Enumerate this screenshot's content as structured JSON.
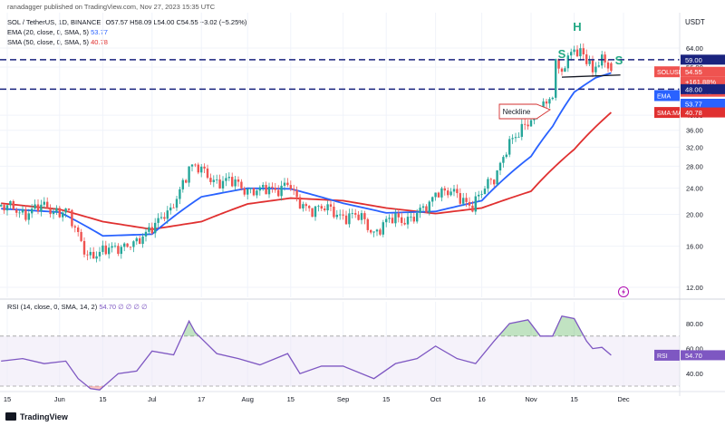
{
  "header": {
    "attribution": "ranadagger published on TradingView.com, Nov 27, 2023 15:35 UTC",
    "symbol_line": "SOL / TetherUS, 1D, BINANCE",
    "ohlc": "O57.57 H58.09 L54.00 C54.55 −3.02 (−5.25%)",
    "ema_label": "EMA (20, close, 0, SMA, 5)",
    "ema_value": "53.77",
    "sma_label": "SMA (50, close, 0, SMA, 5)",
    "sma_value": "40.78",
    "currency": "USDT"
  },
  "rsi_header": {
    "label": "RSI (14, close, 0, SMA, 14, 2)",
    "values": "54.70 ∅ ∅ ∅ ∅"
  },
  "footer": {
    "logo_text": "TradingView"
  },
  "annotations": {
    "left_shoulder": "S",
    "head": "H",
    "right_shoulder": "S",
    "neckline": "Neckline"
  },
  "price_tags": {
    "resistance": "59.00",
    "price_symbol": "SOLUSDT",
    "price": "54.55",
    "change": "+161.88%",
    "countdown": "08:24:02",
    "ema_tag": "EMA",
    "ema_value": "53.77",
    "support": "48.00",
    "sma_tag": "SMA:MA",
    "sma_value": "40.78",
    "rsi_tag": "RSI",
    "rsi_value": "54.70"
  },
  "colors": {
    "up": "#26a69a",
    "down": "#ef5350",
    "ema": "#2962ff",
    "sma": "#e03030",
    "rsi": "#7e57c2",
    "levels": "#1a237e",
    "annotation": "#22a884"
  },
  "chart_data": [
    {
      "type": "candlestick",
      "title": "SOL / TetherUS, 1D, BINANCE",
      "y_scale": "log",
      "y_ticks": [
        12,
        16,
        20,
        24,
        28,
        32,
        36,
        40,
        48,
        56,
        64
      ],
      "y_tick_labels": [
        "12.00",
        "16.00",
        "20.00",
        "24.00",
        "28.00",
        "32.00",
        "36.00",
        "40.00",
        "48.00",
        "56.00",
        "64.00"
      ],
      "x_ticks": [
        "2023-05-15",
        "2023-06-01",
        "2023-06-15",
        "2023-07-01",
        "2023-07-17",
        "2023-08-01",
        "2023-08-15",
        "2023-09-01",
        "2023-09-15",
        "2023-10-01",
        "2023-10-16",
        "2023-11-01",
        "2023-11-15",
        "2023-12-01"
      ],
      "x_tick_labels": [
        "15",
        "Jun",
        "15",
        "Jul",
        "17",
        "Aug",
        "15",
        "Sep",
        "15",
        "Oct",
        "16",
        "Nov",
        "15",
        "Dec"
      ],
      "horizontal_levels": [
        59,
        48
      ],
      "neckline": {
        "from": [
          "2023-11-11",
          52.2
        ],
        "to": [
          "2023-11-30",
          53.0
        ]
      },
      "close_anchors": [
        [
          "2023-05-13",
          21.0
        ],
        [
          "2023-05-20",
          20.4
        ],
        [
          "2023-05-27",
          20.9
        ],
        [
          "2023-06-03",
          20.5
        ],
        [
          "2023-06-06",
          17.8
        ],
        [
          "2023-06-10",
          15.3
        ],
        [
          "2023-06-14",
          15.0
        ],
        [
          "2023-06-20",
          16.2
        ],
        [
          "2023-06-26",
          16.0
        ],
        [
          "2023-07-01",
          18.8
        ],
        [
          "2023-07-07",
          20.0
        ],
        [
          "2023-07-13",
          28.0
        ],
        [
          "2023-07-15",
          27.5
        ],
        [
          "2023-07-22",
          25.4
        ],
        [
          "2023-07-29",
          24.6
        ],
        [
          "2023-08-05",
          23.3
        ],
        [
          "2023-08-12",
          24.4
        ],
        [
          "2023-08-14",
          24.9
        ],
        [
          "2023-08-17",
          21.6
        ],
        [
          "2023-08-25",
          20.7
        ],
        [
          "2023-09-01",
          20.0
        ],
        [
          "2023-09-07",
          19.3
        ],
        [
          "2023-09-11",
          17.8
        ],
        [
          "2023-09-18",
          19.4
        ],
        [
          "2023-09-25",
          19.7
        ],
        [
          "2023-09-29",
          21.3
        ],
        [
          "2023-10-01",
          24.0
        ],
        [
          "2023-10-07",
          22.8
        ],
        [
          "2023-10-13",
          21.6
        ],
        [
          "2023-10-16",
          23.0
        ],
        [
          "2023-10-20",
          25.8
        ],
        [
          "2023-10-24",
          32.0
        ],
        [
          "2023-10-28",
          34.5
        ],
        [
          "2023-10-31",
          38.8
        ],
        [
          "2023-11-02",
          40.2
        ],
        [
          "2023-11-04",
          42.5
        ],
        [
          "2023-11-06",
          42.0
        ],
        [
          "2023-11-08",
          46.0
        ],
        [
          "2023-11-09",
          57.0
        ],
        [
          "2023-11-10",
          56.0
        ],
        [
          "2023-11-12",
          57.5
        ],
        [
          "2023-11-14",
          62.5
        ],
        [
          "2023-11-15",
          65.0
        ],
        [
          "2023-11-16",
          58.0
        ],
        [
          "2023-11-17",
          61.5
        ],
        [
          "2023-11-19",
          59.0
        ],
        [
          "2023-11-21",
          55.0
        ],
        [
          "2023-11-22",
          58.5
        ],
        [
          "2023-11-24",
          59.5
        ],
        [
          "2023-11-25",
          57.6
        ],
        [
          "2023-11-27",
          54.55
        ]
      ],
      "ema20_anchors": [
        [
          "2023-05-13",
          20.8
        ],
        [
          "2023-06-01",
          20.3
        ],
        [
          "2023-06-15",
          17.2
        ],
        [
          "2023-07-01",
          17.4
        ],
        [
          "2023-07-17",
          22.6
        ],
        [
          "2023-08-01",
          24.0
        ],
        [
          "2023-08-15",
          23.9
        ],
        [
          "2023-09-01",
          21.6
        ],
        [
          "2023-09-15",
          20.2
        ],
        [
          "2023-10-01",
          20.4
        ],
        [
          "2023-10-16",
          22.0
        ],
        [
          "2023-11-01",
          30.0
        ],
        [
          "2023-11-08",
          37.0
        ],
        [
          "2023-11-15",
          47.0
        ],
        [
          "2023-11-22",
          52.0
        ],
        [
          "2023-11-27",
          53.77
        ]
      ],
      "sma50_anchors": [
        [
          "2023-05-13",
          21.6
        ],
        [
          "2023-06-01",
          20.7
        ],
        [
          "2023-06-15",
          19.0
        ],
        [
          "2023-07-01",
          18.0
        ],
        [
          "2023-07-17",
          19.0
        ],
        [
          "2023-08-01",
          21.5
        ],
        [
          "2023-08-15",
          22.4
        ],
        [
          "2023-09-01",
          22.0
        ],
        [
          "2023-09-15",
          20.9
        ],
        [
          "2023-10-01",
          20.1
        ],
        [
          "2023-10-16",
          20.9
        ],
        [
          "2023-11-01",
          23.5
        ],
        [
          "2023-11-15",
          31.5
        ],
        [
          "2023-11-27",
          40.78
        ]
      ]
    },
    {
      "type": "line",
      "title": "RSI (14, close, 0, SMA, 14, 2)",
      "y_ticks": [
        40,
        60,
        80
      ],
      "y_tick_labels": [
        "40.00",
        "60.00",
        "80.00"
      ],
      "band": [
        30,
        70
      ],
      "x": [
        "2023-05-13",
        "2023-05-20",
        "2023-05-27",
        "2023-06-03",
        "2023-06-07",
        "2023-06-11",
        "2023-06-14",
        "2023-06-20",
        "2023-06-26",
        "2023-07-01",
        "2023-07-08",
        "2023-07-13",
        "2023-07-15",
        "2023-07-22",
        "2023-07-29",
        "2023-08-05",
        "2023-08-14",
        "2023-08-18",
        "2023-08-25",
        "2023-09-01",
        "2023-09-11",
        "2023-09-18",
        "2023-09-25",
        "2023-10-01",
        "2023-10-08",
        "2023-10-14",
        "2023-10-20",
        "2023-10-25",
        "2023-10-31",
        "2023-11-04",
        "2023-11-08",
        "2023-11-11",
        "2023-11-15",
        "2023-11-19",
        "2023-11-21",
        "2023-11-24",
        "2023-11-27"
      ],
      "values": [
        50,
        52,
        48,
        50,
        36,
        28,
        27,
        40,
        42,
        58,
        55,
        82,
        73,
        56,
        52,
        47,
        56,
        40,
        46,
        46,
        36,
        48,
        52,
        62,
        52,
        48,
        66,
        80,
        83,
        70,
        70,
        86,
        84,
        66,
        60,
        61,
        54.7
      ]
    }
  ]
}
